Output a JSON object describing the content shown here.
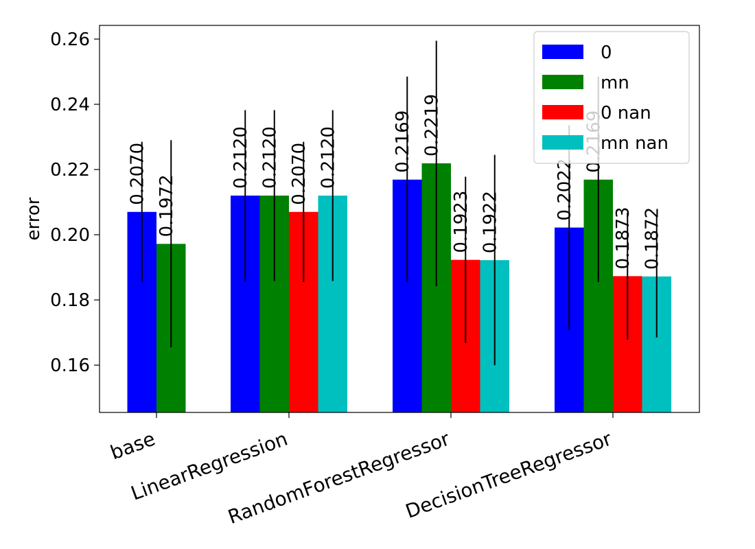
{
  "chart_data": {
    "type": "bar",
    "title": "",
    "xlabel": "",
    "ylabel": "error",
    "ylim": [
      0.1455,
      0.2642
    ],
    "yticks": [
      0.16,
      0.18,
      0.2,
      0.22,
      0.24,
      0.26
    ],
    "ytick_labels": [
      "0.16",
      "0.18",
      "0.20",
      "0.22",
      "0.24",
      "0.26"
    ],
    "grid": false,
    "legend_position": "top-right",
    "categories": [
      "base",
      "LinearRegression",
      "RandomForestRegressor",
      "DecisionTreeRegressor"
    ],
    "series": [
      {
        "name": "0",
        "color": "#0000ff",
        "values": [
          0.207,
          0.212,
          0.2169,
          0.2022
        ],
        "labels": [
          "0.2070",
          "0.2120",
          "0.2169",
          "0.2022"
        ],
        "err_low": [
          0.1855,
          0.1858,
          0.1855,
          0.1708
        ],
        "err_high": [
          0.2285,
          0.2382,
          0.2485,
          0.2335
        ]
      },
      {
        "name": "mn",
        "color": "#008000",
        "values": [
          0.1972,
          0.212,
          0.2219,
          0.2169
        ],
        "labels": [
          "0.1972",
          "0.2120",
          "0.2219",
          "0.2169"
        ],
        "err_low": [
          0.1655,
          0.1858,
          0.1842,
          0.1855
        ],
        "err_high": [
          0.229,
          0.2382,
          0.2595,
          0.2485
        ]
      },
      {
        "name": "0 nan",
        "color": "#ff0000",
        "values": [
          null,
          0.207,
          0.1923,
          0.1873
        ],
        "labels": [
          null,
          "0.2070",
          "0.1923",
          "0.1873"
        ],
        "err_low": [
          null,
          0.1855,
          0.1668,
          0.1678
        ],
        "err_high": [
          null,
          0.2285,
          0.2178,
          0.2068
        ]
      },
      {
        "name": "mn nan",
        "color": "#00bfbf",
        "values": [
          null,
          0.212,
          0.1922,
          0.1872
        ],
        "labels": [
          null,
          "0.2120",
          "0.1922",
          "0.1872"
        ],
        "err_low": [
          null,
          0.1858,
          0.16,
          0.1685
        ],
        "err_high": [
          null,
          0.2382,
          0.2245,
          0.206
        ]
      }
    ]
  }
}
